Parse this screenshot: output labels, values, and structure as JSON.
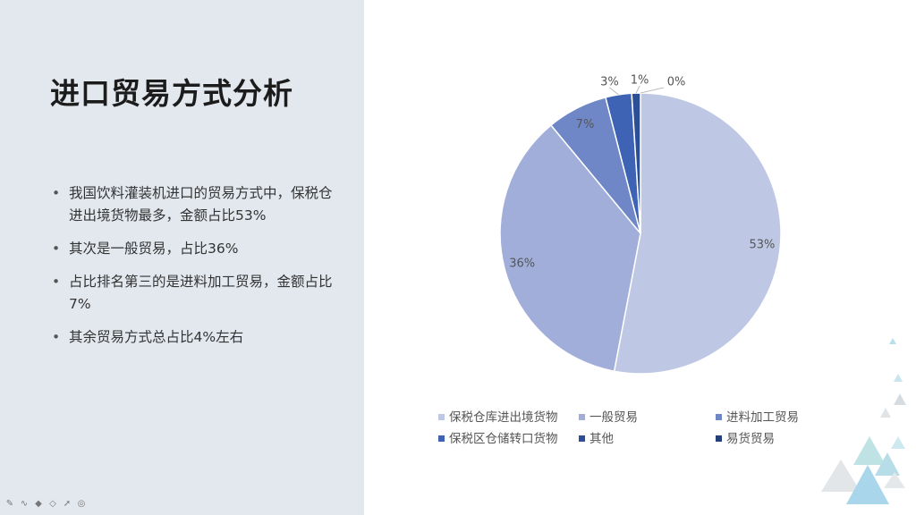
{
  "slide": {
    "title": "进口贸易方式分析",
    "bullets": [
      "我国饮料灌装机进口的贸易方式中，保税仓进出境货物最多，金额占比53%",
      "其次是一般贸易，占比36%",
      "占比排名第三的是进料加工贸易，金额占比7%",
      "其余贸易方式总占比4%左右"
    ]
  },
  "toolbar": {
    "icons": [
      "pen-icon",
      "squiggle-icon",
      "marker-icon",
      "eraser-icon",
      "pointer-icon",
      "record-icon"
    ]
  },
  "chart_data": {
    "type": "pie",
    "title": "",
    "series": [
      {
        "categories": [
          "保税仓库进出境货物",
          "一般贸易",
          "进料加工贸易",
          "保税区仓储转口货物",
          "其他",
          "易货贸易"
        ],
        "values": [
          53,
          36,
          7,
          3,
          1,
          0
        ],
        "labels": [
          "53%",
          "36%",
          "7%",
          "3%",
          "1%",
          "0%"
        ],
        "colors": [
          "#bec8e4",
          "#a0aed9",
          "#6f87c7",
          "#3e62b4",
          "#2c4e96",
          "#24407a"
        ]
      }
    ],
    "legend_position": "bottom"
  }
}
